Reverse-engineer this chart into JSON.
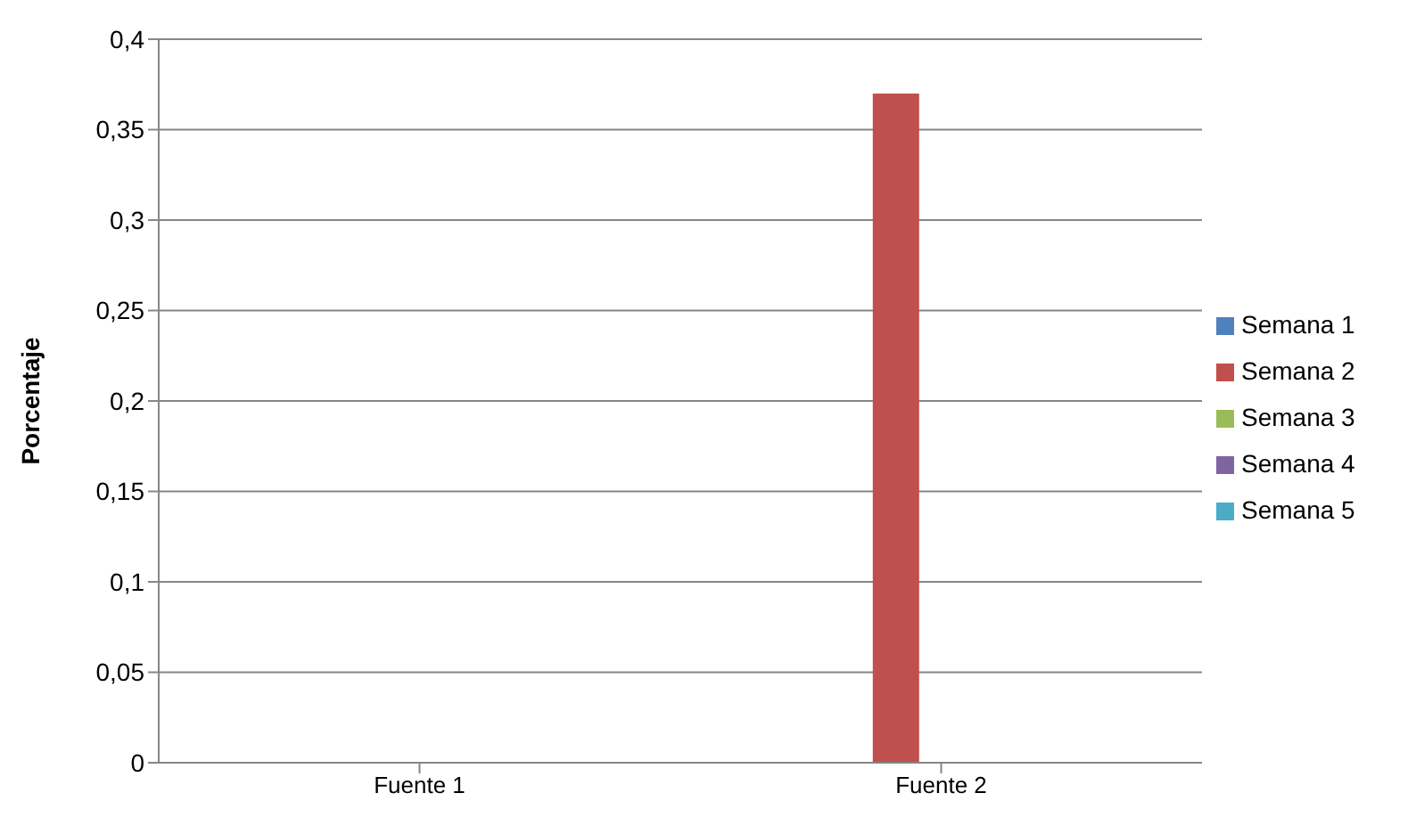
{
  "chart_data": {
    "type": "bar",
    "ylabel": "Porcentaje",
    "categories": [
      "Fuente 1",
      "Fuente 2"
    ],
    "series": [
      {
        "name": "Semana 1",
        "color": "#4f81bd",
        "values": [
          0,
          0
        ]
      },
      {
        "name": "Semana 2",
        "color": "#c0504d",
        "values": [
          0,
          0.37
        ]
      },
      {
        "name": "Semana 3",
        "color": "#9bbb59",
        "values": [
          0,
          0
        ]
      },
      {
        "name": "Semana 4",
        "color": "#8064a2",
        "values": [
          0,
          0
        ]
      },
      {
        "name": "Semana 5",
        "color": "#4bacc6",
        "values": [
          0,
          0
        ]
      }
    ],
    "ylim": [
      0,
      0.4
    ],
    "yticks": [
      0,
      {
        "value": 0.05,
        "label": "0,05"
      },
      {
        "value": 0.1,
        "label": "0,1"
      },
      {
        "value": 0.15,
        "label": "0,15"
      },
      {
        "value": 0.2,
        "label": "0,2"
      },
      {
        "value": 0.25,
        "label": "0,25"
      },
      {
        "value": 0.3,
        "label": "0,3"
      },
      {
        "value": 0.35,
        "label": "0,35"
      },
      {
        "value": 0.4,
        "label": "0,4"
      }
    ],
    "grid": "y",
    "legend": "right"
  }
}
